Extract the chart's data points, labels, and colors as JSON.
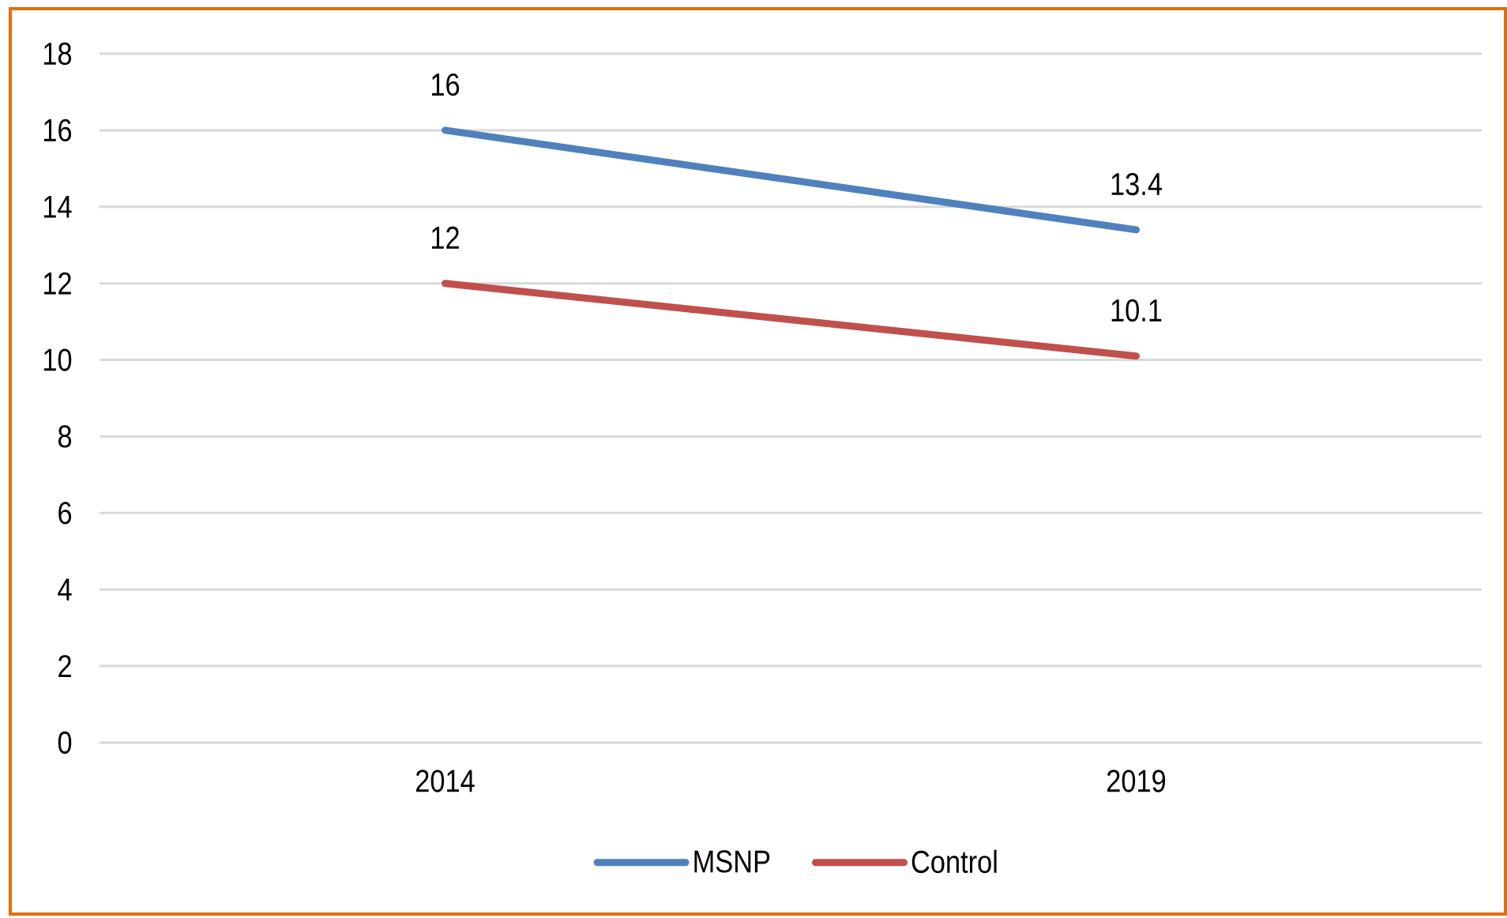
{
  "chart_data": {
    "type": "line",
    "categories": [
      "2014",
      "2019"
    ],
    "series": [
      {
        "name": "MSNP",
        "color": "#4f81bd",
        "values": [
          16,
          13.4
        ]
      },
      {
        "name": "Control",
        "color": "#c0504d",
        "values": [
          12,
          10.1
        ]
      }
    ],
    "ylim": [
      0,
      18
    ],
    "yticks": [
      0,
      2,
      4,
      6,
      8,
      10,
      12,
      14,
      16,
      18
    ],
    "grid": "y",
    "legend": "bottom",
    "data_labels": true,
    "line_style": "solid"
  }
}
